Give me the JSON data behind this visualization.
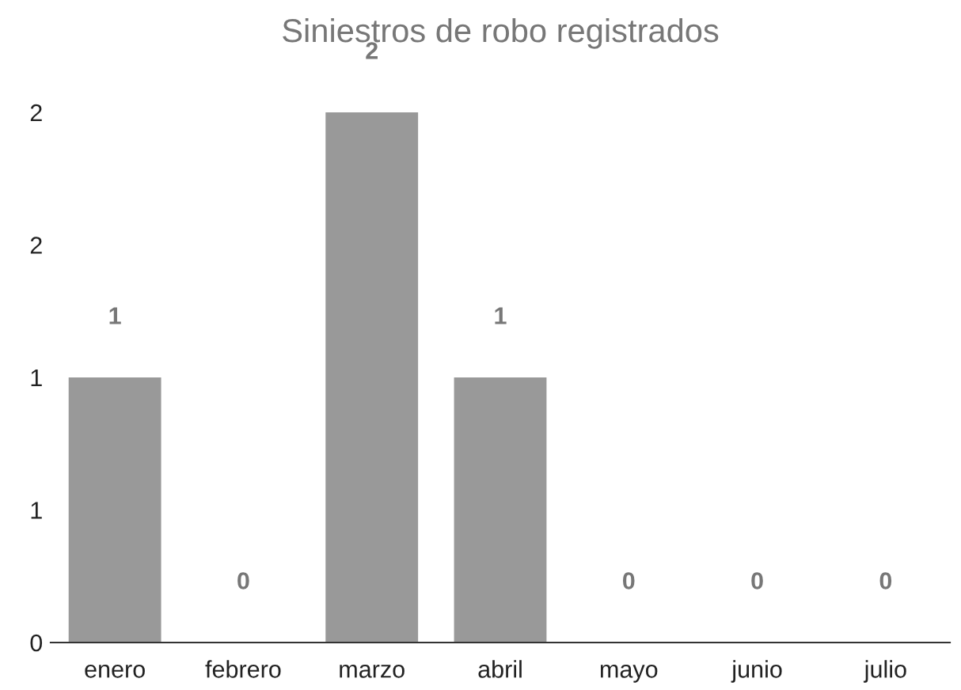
{
  "chart_data": {
    "type": "bar",
    "title": "Siniestros de robo registrados",
    "categories": [
      "enero",
      "febrero",
      "marzo",
      "abril",
      "mayo",
      "junio",
      "julio"
    ],
    "values": [
      1,
      0,
      2,
      1,
      0,
      0,
      0
    ],
    "color": "#999999",
    "ylim": [
      0,
      2
    ],
    "yticks": [
      0,
      {
        "value": 0.5,
        "label": "1"
      },
      1,
      {
        "value": 1.5,
        "label": "2"
      },
      2
    ],
    "data_labels": true,
    "grid": false,
    "legend": false
  }
}
